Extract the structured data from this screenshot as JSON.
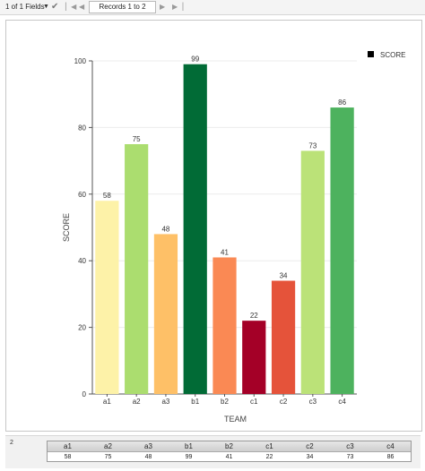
{
  "toolbar": {
    "fields_label": "1 of 1 Fields",
    "records_label": "Records 1 to 2"
  },
  "chart_data": {
    "type": "bar",
    "categories": [
      "a1",
      "a2",
      "a3",
      "b1",
      "b2",
      "c1",
      "c2",
      "c3",
      "c4"
    ],
    "values": [
      58,
      75,
      48,
      99,
      41,
      22,
      34,
      73,
      86
    ],
    "colors": [
      "#fdf2a8",
      "#abdd6f",
      "#fec067",
      "#016b36",
      "#fa8954",
      "#a40027",
      "#e5533a",
      "#bbe278",
      "#4db25e"
    ],
    "xlabel": "TEAM",
    "ylabel": "SCORE",
    "ylim": [
      0,
      100
    ],
    "yticks": [
      0,
      20,
      40,
      60,
      80,
      100
    ],
    "legend": {
      "label": "SCORE",
      "position": "top-right",
      "color": "#000000"
    },
    "grid": true
  },
  "table": {
    "row_label": "2",
    "headers": [
      "a1",
      "a2",
      "a3",
      "b1",
      "b2",
      "c1",
      "c2",
      "c3",
      "c4"
    ],
    "values": [
      "58",
      "75",
      "48",
      "99",
      "41",
      "22",
      "34",
      "73",
      "86"
    ]
  }
}
